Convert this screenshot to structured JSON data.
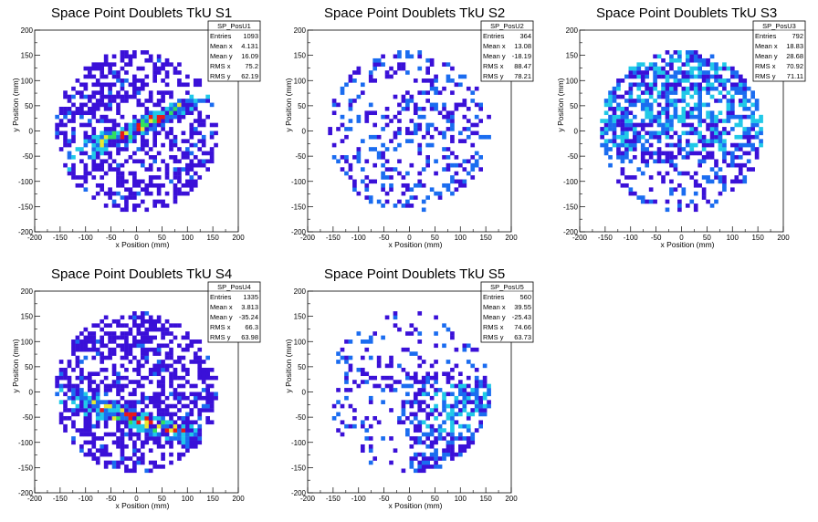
{
  "palette": [
    "#3a10d8",
    "#1a6cf0",
    "#20c8e8",
    "#30e060",
    "#e8e830",
    "#e81818"
  ],
  "chart_data": [
    {
      "type": "heatmap",
      "title": "Space Point Doublets TkU S1",
      "xlabel": "x Position (mm)",
      "ylabel": "y Position (mm)",
      "xlim": [
        -200,
        200
      ],
      "ylim": [
        -200,
        200
      ],
      "xticks": [
        "-200",
        "-150",
        "-100",
        "-50",
        "0",
        "50",
        "100",
        "150",
        "200"
      ],
      "yticks": [
        "-200",
        "-150",
        "-100",
        "-50",
        "0",
        "50",
        "100",
        "150",
        "200"
      ],
      "stats": {
        "name": "SP_PosU1",
        "rows": [
          {
            "label": "Entries",
            "value": "1093"
          },
          {
            "label": "Mean x",
            "value": "4.131"
          },
          {
            "label": "Mean y",
            "value": "16.09"
          },
          {
            "label": "RMS x",
            "value": "75.2"
          },
          {
            "label": "RMS y",
            "value": "62.19"
          }
        ]
      },
      "pattern": "band-up",
      "entries": 1093
    },
    {
      "type": "heatmap",
      "title": "Space Point Doublets TkU S2",
      "xlabel": "x Position (mm)",
      "ylabel": "y Position (mm)",
      "xlim": [
        -200,
        200
      ],
      "ylim": [
        -200,
        200
      ],
      "xticks": [
        "-200",
        "-150",
        "-100",
        "-50",
        "0",
        "50",
        "100",
        "150",
        "200"
      ],
      "yticks": [
        "-200",
        "-150",
        "-100",
        "-50",
        "0",
        "50",
        "100",
        "150",
        "200"
      ],
      "stats": {
        "name": "SP_PosU2",
        "rows": [
          {
            "label": "Entries",
            "value": "364"
          },
          {
            "label": "Mean x",
            "value": "13.08"
          },
          {
            "label": "Mean y",
            "value": "-18.19"
          },
          {
            "label": "RMS x",
            "value": "88.47"
          },
          {
            "label": "RMS y",
            "value": "78.21"
          }
        ]
      },
      "pattern": "sparse",
      "entries": 364
    },
    {
      "type": "heatmap",
      "title": "Space Point Doublets TkU S3",
      "xlabel": "x Position (mm)",
      "ylabel": "y Position (mm)",
      "xlim": [
        -200,
        200
      ],
      "ylim": [
        -200,
        200
      ],
      "xticks": [
        "-200",
        "-150",
        "-100",
        "-50",
        "0",
        "50",
        "100",
        "150",
        "200"
      ],
      "yticks": [
        "-200",
        "-150",
        "-100",
        "-50",
        "0",
        "50",
        "100",
        "150",
        "200"
      ],
      "stats": {
        "name": "SP_PosU3",
        "rows": [
          {
            "label": "Entries",
            "value": "792"
          },
          {
            "label": "Mean x",
            "value": "18.83"
          },
          {
            "label": "Mean y",
            "value": "28.68"
          },
          {
            "label": "RMS x",
            "value": "70.92"
          },
          {
            "label": "RMS y",
            "value": "71.11"
          }
        ]
      },
      "pattern": "upper",
      "entries": 792
    },
    {
      "type": "heatmap",
      "title": "Space Point Doublets TkU S4",
      "xlabel": "x Position (mm)",
      "ylabel": "y Position (mm)",
      "xlim": [
        -200,
        200
      ],
      "ylim": [
        -200,
        200
      ],
      "xticks": [
        "-200",
        "-150",
        "-100",
        "-50",
        "0",
        "50",
        "100",
        "150",
        "200"
      ],
      "yticks": [
        "-200",
        "-150",
        "-100",
        "-50",
        "0",
        "50",
        "100",
        "150",
        "200"
      ],
      "stats": {
        "name": "SP_PosU4",
        "rows": [
          {
            "label": "Entries",
            "value": "1335"
          },
          {
            "label": "Mean x",
            "value": "3.813"
          },
          {
            "label": "Mean y",
            "value": "-35.24"
          },
          {
            "label": "RMS x",
            "value": "66.3"
          },
          {
            "label": "RMS y",
            "value": "63.98"
          }
        ]
      },
      "pattern": "band-down",
      "entries": 1335
    },
    {
      "type": "heatmap",
      "title": "Space Point Doublets TkU S5",
      "xlabel": "x Position (mm)",
      "ylabel": "y Position (mm)",
      "xlim": [
        -200,
        200
      ],
      "ylim": [
        -200,
        200
      ],
      "xticks": [
        "-200",
        "-150",
        "-100",
        "-50",
        "0",
        "50",
        "100",
        "150",
        "200"
      ],
      "yticks": [
        "-200",
        "-150",
        "-100",
        "-50",
        "0",
        "50",
        "100",
        "150",
        "200"
      ],
      "stats": {
        "name": "SP_PosU5",
        "rows": [
          {
            "label": "Entries",
            "value": "560"
          },
          {
            "label": "Mean x",
            "value": "39.55"
          },
          {
            "label": "Mean y",
            "value": "-25.43"
          },
          {
            "label": "RMS x",
            "value": "74.66"
          },
          {
            "label": "RMS y",
            "value": "63.73"
          }
        ]
      },
      "pattern": "lower-right",
      "entries": 560
    }
  ]
}
